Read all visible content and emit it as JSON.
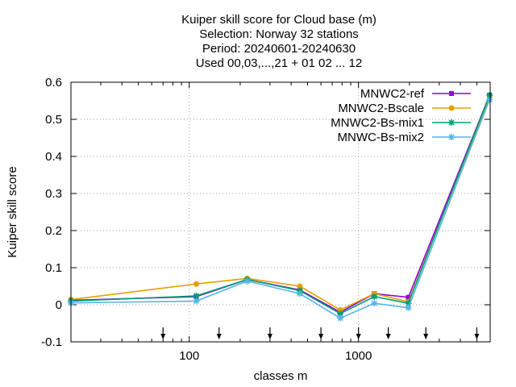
{
  "chart_data": {
    "type": "line",
    "title": [
      "Kuiper skill score  for Cloud base (m)",
      "Selection: Norway     32 stations",
      "Period: 20240601-20240630",
      "Used 00,03,...,21 + 01 02 ... 12"
    ],
    "xlabel": "classes m",
    "ylabel": "Kuiper skill score",
    "x_scale": "log",
    "xlim": [
      20,
      6000
    ],
    "ylim": [
      -0.1,
      0.6
    ],
    "y_ticks": [
      -0.1,
      0,
      0.1,
      0.2,
      0.3,
      0.4,
      0.5,
      0.6
    ],
    "y_tick_labels": [
      "-0.1",
      "0",
      "0.1",
      "0.2",
      "0.3",
      "0.4",
      "0.5",
      "0.6"
    ],
    "x_ticks": [
      100,
      1000
    ],
    "x_tick_labels": [
      "100",
      "1000"
    ],
    "grid": true,
    "legend_position": "top-right",
    "threshold_markers": [
      70,
      150,
      300,
      600,
      1000,
      1500,
      2500,
      5000
    ],
    "x": [
      20,
      110,
      220,
      450,
      780,
      1240,
      1970,
      5950
    ],
    "series": [
      {
        "name": "MNWC2-ref",
        "color": "#9400d3",
        "marker": "square",
        "values": [
          0.012,
          0.022,
          0.068,
          0.04,
          -0.02,
          0.03,
          0.02,
          0.565
        ]
      },
      {
        "name": "MNWC2-Bscale",
        "color": "#e69f00",
        "marker": "circle",
        "values": [
          0.014,
          0.056,
          0.071,
          0.05,
          -0.014,
          0.03,
          0.008,
          0.56
        ]
      },
      {
        "name": "MNWC2-Bs-mix1",
        "color": "#009e73",
        "marker": "star",
        "values": [
          0.01,
          0.024,
          0.068,
          0.038,
          -0.024,
          0.022,
          0.004,
          0.565
        ]
      },
      {
        "name": "MNWC-Bs-mix2",
        "color": "#56b4e9",
        "marker": "star",
        "values": [
          0.005,
          0.01,
          0.064,
          0.03,
          -0.036,
          0.004,
          -0.008,
          0.553
        ]
      }
    ]
  }
}
